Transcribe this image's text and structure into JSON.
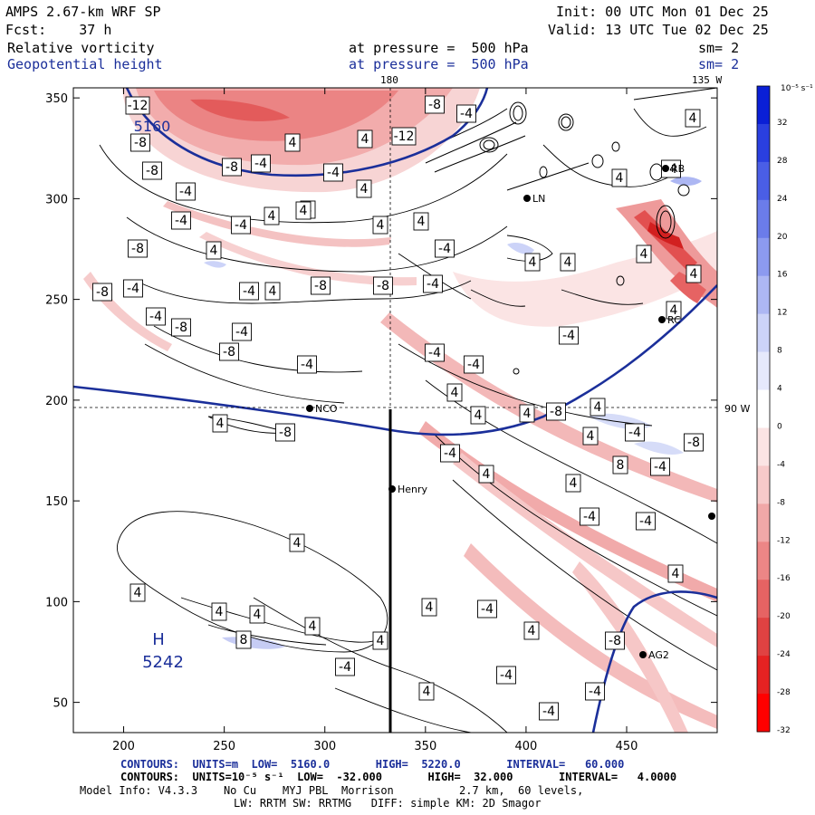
{
  "header": {
    "model": "AMPS 2.67-km WRF SP",
    "fcst": "Fcst:    37 h",
    "init": "Init: 00 UTC Mon 01 Dec 25",
    "valid": "Valid: 13 UTC Tue 02 Dec 25",
    "field1": "Relative vorticity",
    "field2": "Geopotential height",
    "pressure1": "at pressure =  500 hPa",
    "pressure2": "at pressure =  500 hPa",
    "sm1": "sm= 2",
    "sm2": "sm= 2",
    "lon_top": "180",
    "lon_top_right": "135 W",
    "lat_right": "90 W"
  },
  "footer": {
    "line1": "CONTOURS:  UNITS=m  LOW=  5160.0       HIGH=  5220.0       INTERVAL=   60.000",
    "line2": "CONTOURS:  UNITS=10⁻⁵ s⁻¹  LOW=  -32.000       HIGH=  32.000       INTERVAL=   4.0000",
    "line3": "Model Info: V4.3.3    No Cu    MYJ PBL  Morrison          2.7 km,  60 levels,",
    "line4": "LW: RRTM SW: RRTMG   DIFF: simple KM: 2D Smagor"
  },
  "colorbar": {
    "unit": "10⁻⁵ s⁻¹",
    "labels": [
      "32",
      "28",
      "24",
      "20",
      "16",
      "12",
      "8",
      "4",
      "0",
      "-4",
      "-8",
      "-12",
      "-16",
      "-20",
      "-24",
      "-28",
      "-32"
    ],
    "colors": [
      "#0a1fd6",
      "#2a3fe0",
      "#4a5ee6",
      "#6b7cea",
      "#8c9aef",
      "#adb7f3",
      "#ccd3f8",
      "#e6e9fc",
      "#ffffff",
      "#fbe4e4",
      "#f7caca",
      "#f1a8a8",
      "#ec8686",
      "#e66363",
      "#e04242",
      "#e52222",
      "#ff0000"
    ]
  },
  "stations": [
    {
      "name": "NCO"
    },
    {
      "name": "Henry"
    },
    {
      "name": "LN"
    },
    {
      "name": "RC"
    },
    {
      "name": "AG2"
    },
    {
      "name": "RB"
    }
  ],
  "high_label": {
    "letter": "H",
    "value": "5242"
  },
  "blue_label": "5160",
  "contour_labels": [
    "-12",
    "-8",
    "-8",
    "-4",
    "-4",
    "-8",
    "-8",
    "-4",
    "-4",
    "-8",
    "-8",
    "-4",
    "-4",
    "4",
    "-8",
    "-8",
    "-4",
    "4",
    "-4",
    "4",
    "4",
    "4",
    "4",
    "-4",
    "4",
    "4",
    "4",
    "-4",
    "4",
    "4",
    "4",
    "4",
    "-4",
    "-4",
    "4",
    "4",
    "4",
    "-8",
    "4",
    "4",
    "-4",
    "-8",
    "8",
    "-4",
    "-4",
    "4",
    "4",
    "-4",
    "-4",
    "4",
    "-4",
    "-4",
    "-8",
    "4",
    "4",
    "4",
    "4",
    "4",
    "8",
    "4",
    "4",
    "-4",
    "4",
    "-4",
    "4",
    "4",
    "-4",
    "-4",
    "-8",
    "-4",
    "4",
    "-12",
    "-8",
    "-4",
    "-4",
    "4",
    "4",
    "-8",
    "-4",
    "4"
  ],
  "chart_data": {
    "type": "heatmap",
    "title": "AMPS 2.67-km WRF SP: Relative vorticity and Geopotential height at 500 hPa",
    "x_ticks": [
      200,
      250,
      300,
      350,
      400,
      450
    ],
    "y_ticks": [
      50,
      100,
      150,
      200,
      250,
      300,
      350
    ],
    "xlim": [
      175,
      495
    ],
    "ylim": [
      35,
      355
    ],
    "xlabel": "",
    "ylabel": "",
    "height_contours": {
      "units": "m",
      "low": 5160.0,
      "high": 5220.0,
      "interval": 60.0
    },
    "vorticity_contours": {
      "units": "10^-5 s^-1",
      "low": -32.0,
      "high": 32.0,
      "interval": 4.0
    },
    "colorbar_range": [
      -32,
      32
    ],
    "high_center": {
      "label": "H",
      "value": 5242
    }
  }
}
